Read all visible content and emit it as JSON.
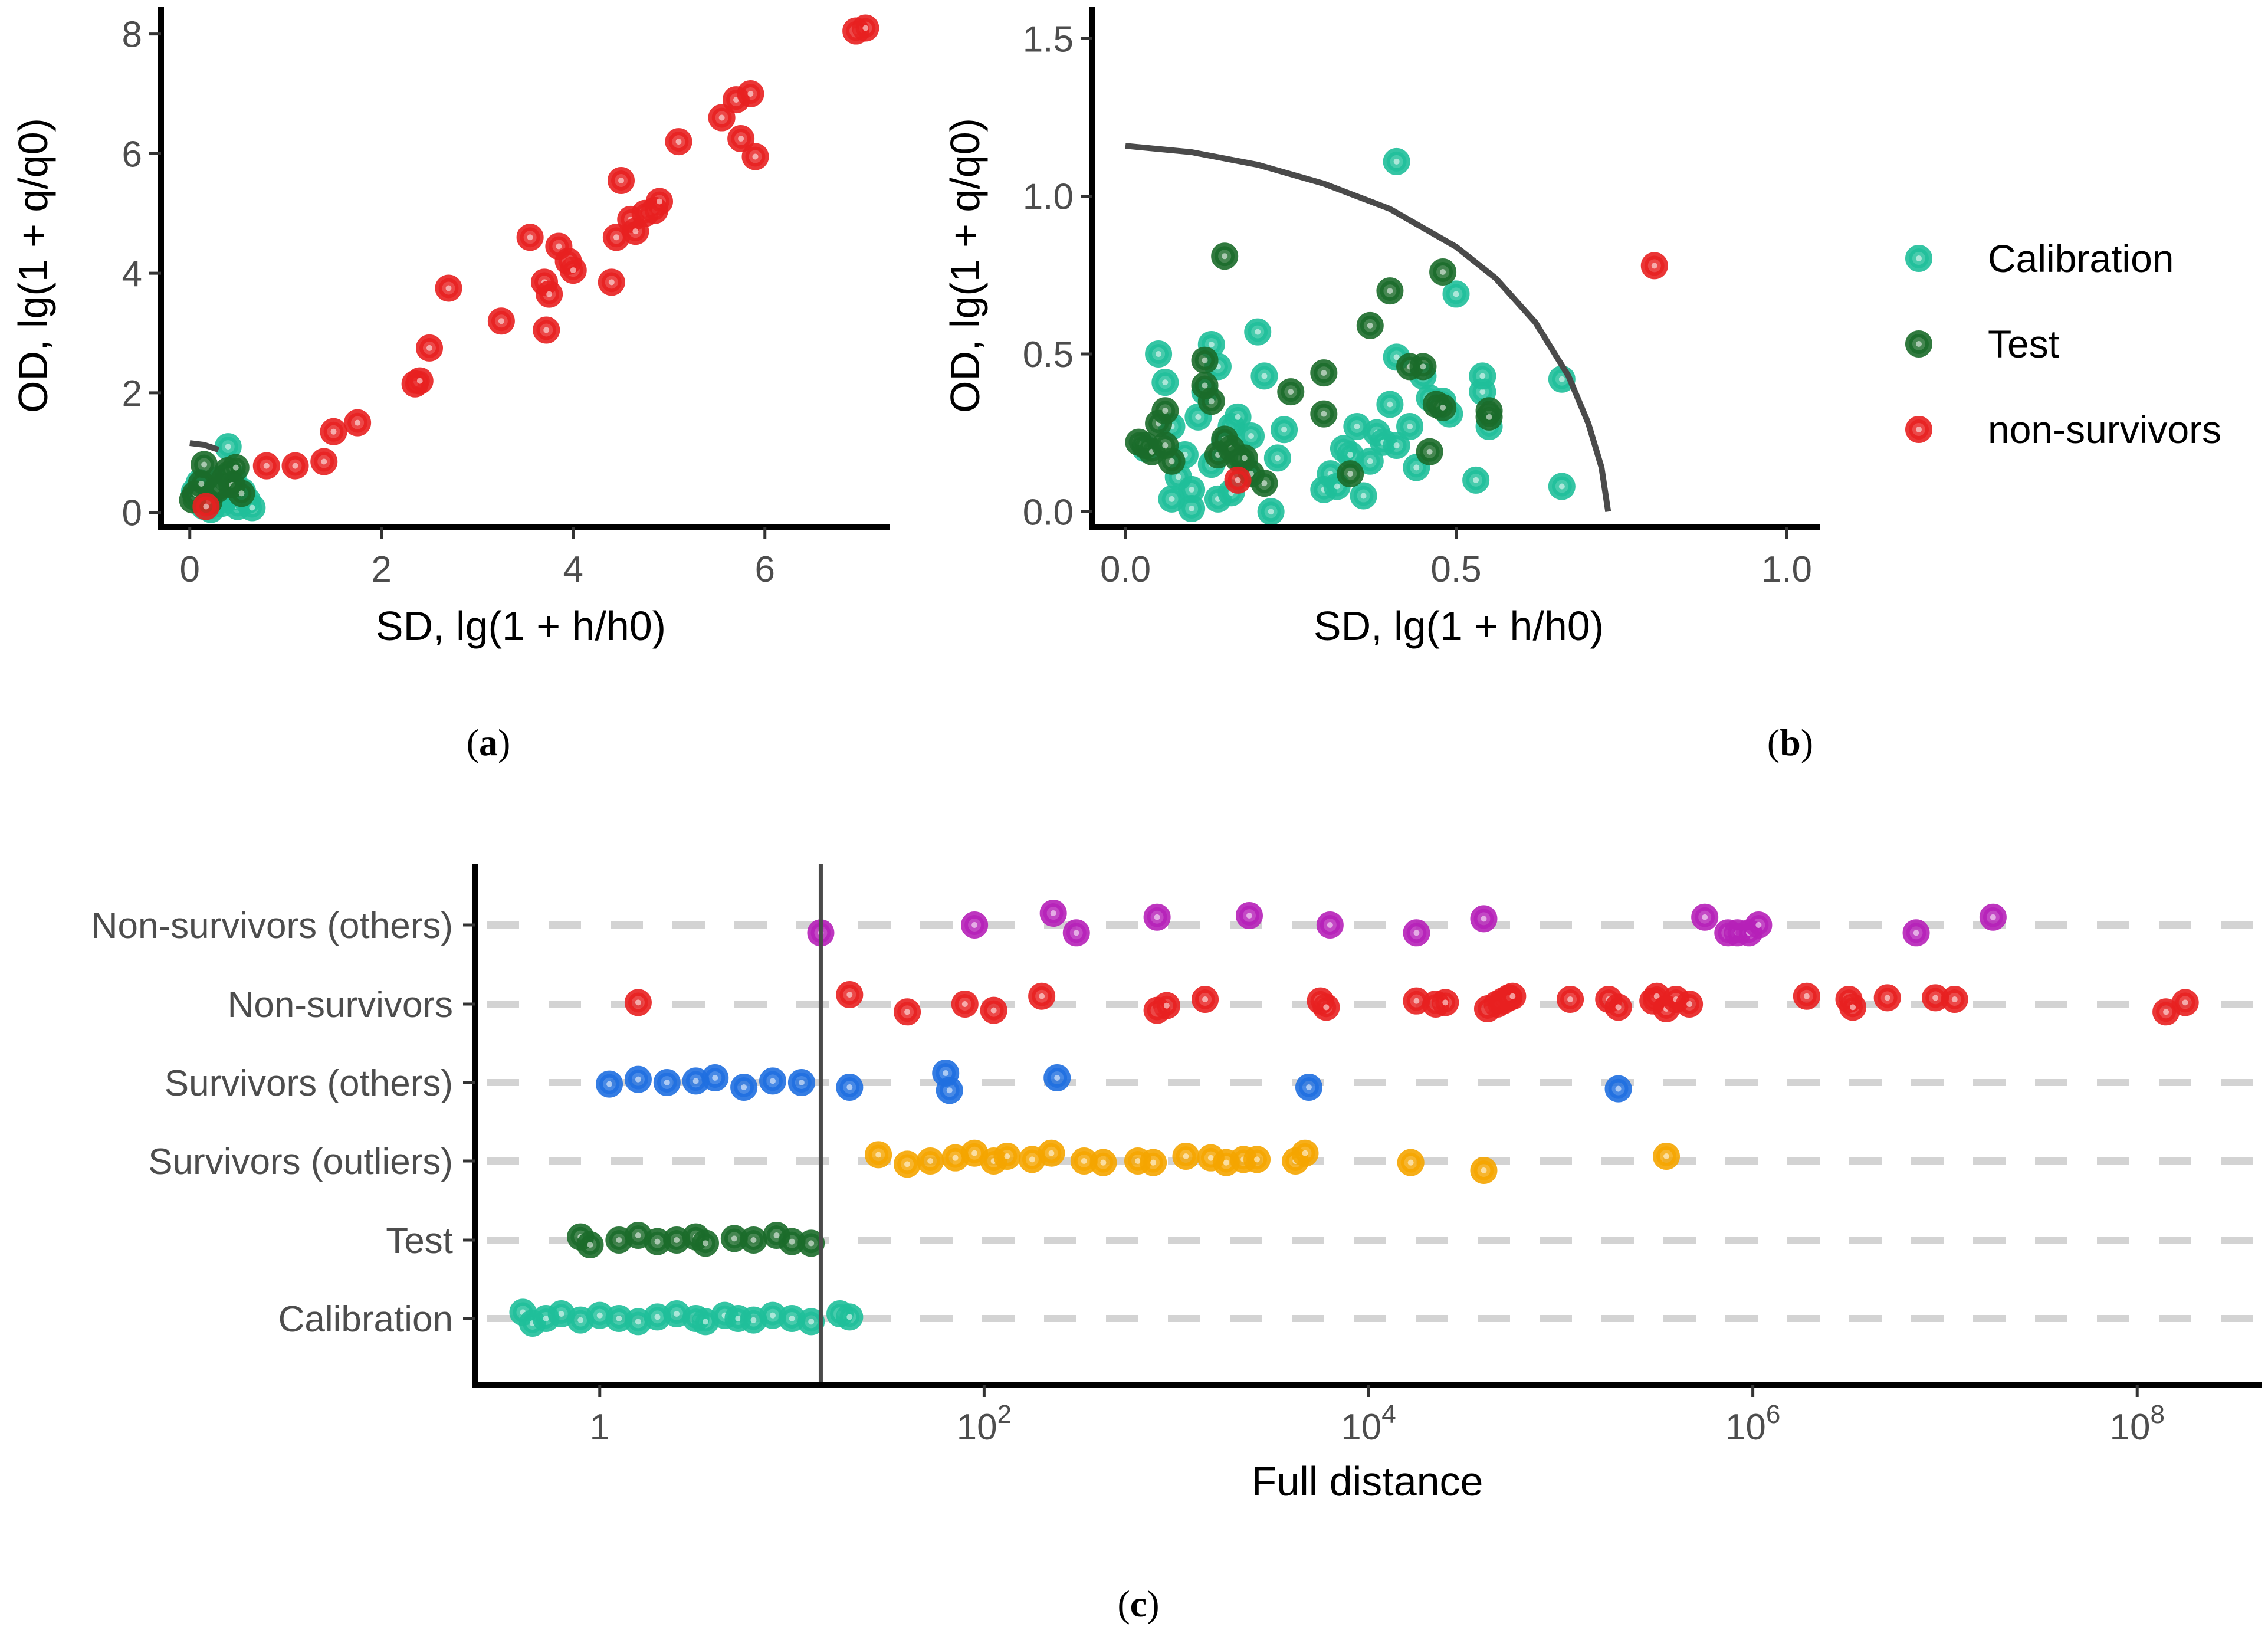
{
  "chart_data": [
    {
      "id": "a",
      "type": "scatter",
      "panel_label": "(a)",
      "panel_letter": "a",
      "xlabel": "SD, lg(1 + h/h0)",
      "ylabel": "OD, lg(1 + q/q0)",
      "xlim": [
        -0.3,
        7.3
      ],
      "ylim": [
        -0.25,
        8.45
      ],
      "x_ticks": [
        0,
        2,
        4,
        6
      ],
      "y_ticks": [
        0,
        2,
        4,
        6,
        8
      ],
      "boundary_curve": [
        [
          0.0,
          1.16
        ],
        [
          0.15,
          1.13
        ],
        [
          0.3,
          1.05
        ]
      ],
      "series": [
        {
          "name": "Calibration",
          "color": "#1fbf9a",
          "points": [
            [
              0.05,
              0.35
            ],
            [
              0.1,
              0.5
            ],
            [
              0.12,
              0.2
            ],
            [
              0.18,
              0.42
            ],
            [
              0.22,
              0.05
            ],
            [
              0.25,
              0.3
            ],
            [
              0.3,
              0.55
            ],
            [
              0.33,
              0.15
            ],
            [
              0.36,
              0.45
            ],
            [
              0.4,
              1.1
            ],
            [
              0.42,
              0.25
            ],
            [
              0.45,
              0.6
            ],
            [
              0.5,
              0.1
            ],
            [
              0.55,
              0.35
            ],
            [
              0.6,
              0.2
            ],
            [
              0.65,
              0.08
            ],
            [
              0.15,
              0.1
            ],
            [
              0.28,
              0.22
            ],
            [
              0.38,
              0.32
            ],
            [
              0.48,
              0.4
            ]
          ]
        },
        {
          "name": "Test",
          "color": "#1b6b2a",
          "points": [
            [
              0.03,
              0.21
            ],
            [
              0.06,
              0.31
            ],
            [
              0.12,
              0.48
            ],
            [
              0.15,
              0.8
            ],
            [
              0.2,
              0.18
            ],
            [
              0.28,
              0.38
            ],
            [
              0.31,
              0.44
            ],
            [
              0.37,
              0.58
            ],
            [
              0.4,
              0.7
            ],
            [
              0.44,
              0.46
            ],
            [
              0.48,
              0.75
            ],
            [
              0.54,
              0.32
            ]
          ]
        },
        {
          "name": "non-survivors",
          "color": "#e82020",
          "points": [
            [
              0.17,
              0.1
            ],
            [
              0.8,
              0.78
            ],
            [
              1.1,
              0.78
            ],
            [
              1.4,
              0.85
            ],
            [
              1.5,
              1.35
            ],
            [
              1.75,
              1.5
            ],
            [
              2.35,
              2.15
            ],
            [
              2.4,
              2.2
            ],
            [
              2.5,
              2.75
            ],
            [
              2.7,
              3.75
            ],
            [
              3.25,
              3.2
            ],
            [
              3.55,
              4.6
            ],
            [
              3.7,
              3.85
            ],
            [
              3.72,
              3.05
            ],
            [
              3.75,
              3.65
            ],
            [
              3.85,
              4.45
            ],
            [
              3.95,
              4.2
            ],
            [
              4.0,
              4.05
            ],
            [
              4.4,
              3.85
            ],
            [
              4.45,
              4.6
            ],
            [
              4.5,
              5.55
            ],
            [
              4.6,
              4.9
            ],
            [
              4.65,
              4.7
            ],
            [
              4.75,
              5.0
            ],
            [
              4.85,
              5.05
            ],
            [
              4.9,
              5.2
            ],
            [
              5.1,
              6.2
            ],
            [
              5.55,
              6.6
            ],
            [
              5.7,
              6.9
            ],
            [
              5.75,
              6.25
            ],
            [
              5.85,
              7.0
            ],
            [
              5.9,
              5.95
            ],
            [
              6.95,
              8.05
            ],
            [
              7.05,
              8.1
            ]
          ]
        }
      ]
    },
    {
      "id": "b",
      "type": "scatter",
      "panel_label": "(b)",
      "panel_letter": "b",
      "xlabel": "SD, lg(1 + h/h0)",
      "ylabel": "OD, lg(1 + q/q0)",
      "xlim": [
        -0.05,
        1.05
      ],
      "ylim": [
        -0.05,
        1.6
      ],
      "x_ticks": [
        0.0,
        0.5,
        1.0
      ],
      "y_ticks": [
        0.0,
        0.5,
        1.0,
        1.5
      ],
      "boundary_curve": [
        [
          0.0,
          1.16
        ],
        [
          0.1,
          1.14
        ],
        [
          0.2,
          1.1
        ],
        [
          0.3,
          1.04
        ],
        [
          0.4,
          0.96
        ],
        [
          0.5,
          0.84
        ],
        [
          0.56,
          0.74
        ],
        [
          0.62,
          0.6
        ],
        [
          0.67,
          0.43
        ],
        [
          0.7,
          0.28
        ],
        [
          0.72,
          0.14
        ],
        [
          0.73,
          0.0
        ]
      ],
      "series": [
        {
          "name": "Calibration",
          "color": "#1fbf9a",
          "points": [
            [
              0.03,
              0.2
            ],
            [
              0.05,
              0.5
            ],
            [
              0.06,
              0.41
            ],
            [
              0.07,
              0.04
            ],
            [
              0.07,
              0.27
            ],
            [
              0.08,
              0.11
            ],
            [
              0.09,
              0.18
            ],
            [
              0.1,
              0.01
            ],
            [
              0.1,
              0.07
            ],
            [
              0.11,
              0.3
            ],
            [
              0.12,
              0.38
            ],
            [
              0.13,
              0.53
            ],
            [
              0.13,
              0.15
            ],
            [
              0.14,
              0.46
            ],
            [
              0.14,
              0.04
            ],
            [
              0.15,
              0.22
            ],
            [
              0.16,
              0.27
            ],
            [
              0.16,
              0.06
            ],
            [
              0.17,
              0.3
            ],
            [
              0.18,
              0.14
            ],
            [
              0.19,
              0.24
            ],
            [
              0.2,
              0.57
            ],
            [
              0.21,
              0.43
            ],
            [
              0.22,
              0.0
            ],
            [
              0.23,
              0.17
            ],
            [
              0.24,
              0.26
            ],
            [
              0.3,
              0.07
            ],
            [
              0.31,
              0.12
            ],
            [
              0.32,
              0.08
            ],
            [
              0.33,
              0.2
            ],
            [
              0.34,
              0.18
            ],
            [
              0.35,
              0.27
            ],
            [
              0.36,
              0.05
            ],
            [
              0.37,
              0.16
            ],
            [
              0.38,
              0.25
            ],
            [
              0.39,
              0.22
            ],
            [
              0.4,
              0.34
            ],
            [
              0.41,
              0.21
            ],
            [
              0.41,
              0.49
            ],
            [
              0.41,
              1.11
            ],
            [
              0.43,
              0.27
            ],
            [
              0.44,
              0.14
            ],
            [
              0.45,
              0.43
            ],
            [
              0.46,
              0.36
            ],
            [
              0.48,
              0.35
            ],
            [
              0.49,
              0.31
            ],
            [
              0.5,
              0.69
            ],
            [
              0.53,
              0.1
            ],
            [
              0.54,
              0.38
            ],
            [
              0.54,
              0.43
            ],
            [
              0.55,
              0.27
            ],
            [
              0.66,
              0.42
            ],
            [
              0.66,
              0.08
            ]
          ]
        },
        {
          "name": "Test",
          "color": "#1b6b2a",
          "points": [
            [
              0.02,
              0.22
            ],
            [
              0.03,
              0.21
            ],
            [
              0.04,
              0.19
            ],
            [
              0.05,
              0.28
            ],
            [
              0.06,
              0.32
            ],
            [
              0.06,
              0.21
            ],
            [
              0.07,
              0.16
            ],
            [
              0.12,
              0.48
            ],
            [
              0.12,
              0.4
            ],
            [
              0.13,
              0.35
            ],
            [
              0.14,
              0.18
            ],
            [
              0.15,
              0.81
            ],
            [
              0.15,
              0.23
            ],
            [
              0.16,
              0.2
            ],
            [
              0.17,
              0.17
            ],
            [
              0.18,
              0.17
            ],
            [
              0.19,
              0.12
            ],
            [
              0.21,
              0.09
            ],
            [
              0.25,
              0.38
            ],
            [
              0.3,
              0.44
            ],
            [
              0.3,
              0.31
            ],
            [
              0.34,
              0.12
            ],
            [
              0.37,
              0.59
            ],
            [
              0.4,
              0.7
            ],
            [
              0.43,
              0.46
            ],
            [
              0.45,
              0.46
            ],
            [
              0.46,
              0.19
            ],
            [
              0.47,
              0.34
            ],
            [
              0.48,
              0.76
            ],
            [
              0.48,
              0.33
            ],
            [
              0.55,
              0.32
            ],
            [
              0.55,
              0.3
            ]
          ]
        },
        {
          "name": "non-survivors",
          "color": "#e82020",
          "points": [
            [
              0.17,
              0.1
            ],
            [
              0.8,
              0.78
            ]
          ]
        }
      ],
      "legend": {
        "placement": "right",
        "entries": [
          {
            "label": "Calibration",
            "color": "#1fbf9a"
          },
          {
            "label": "Test",
            "color": "#1b6b2a"
          },
          {
            "label": "non-survivors",
            "color": "#e82020"
          }
        ]
      }
    },
    {
      "id": "c",
      "type": "scatter",
      "panel_label": "(c)",
      "panel_letter": "c",
      "xlabel": "Full distance",
      "x_scale": "log10",
      "xlim_log10": [
        -0.65,
        8.65
      ],
      "x_ticks": [
        {
          "log10": 0,
          "base": "1",
          "exp": ""
        },
        {
          "log10": 2,
          "base": "10",
          "exp": "2"
        },
        {
          "log10": 4,
          "base": "10",
          "exp": "4"
        },
        {
          "log10": 6,
          "base": "10",
          "exp": "6"
        },
        {
          "log10": 8,
          "base": "10",
          "exp": "8"
        }
      ],
      "threshold_log10": 1.15,
      "categories": [
        "Non-survivors (others)",
        "Non-survivors",
        "Survivors (others)",
        "Survivors (outliers)",
        "Test",
        "Calibration"
      ],
      "series": [
        {
          "name": "Non-survivors (others)",
          "color": "#b620b8",
          "log10_x": [
            1.15,
            1.95,
            2.36,
            2.48,
            2.9,
            3.38,
            3.8,
            4.25,
            4.6,
            5.75,
            5.87,
            5.92,
            5.98,
            6.03,
            6.85,
            7.25
          ],
          "jitter": [
            -0.1,
            0.0,
            0.15,
            -0.1,
            0.1,
            0.12,
            0.0,
            -0.1,
            0.08,
            0.1,
            -0.1,
            -0.1,
            -0.1,
            0.0,
            -0.1,
            0.1
          ]
        },
        {
          "name": "Non-survivors",
          "color": "#e82020",
          "log10_x": [
            0.2,
            1.3,
            1.6,
            1.9,
            2.05,
            2.3,
            2.9,
            2.95,
            3.15,
            3.75,
            3.78,
            4.25,
            4.35,
            4.4,
            4.62,
            4.67,
            4.7,
            4.73,
            4.75,
            5.05,
            5.25,
            5.3,
            5.48,
            5.5,
            5.55,
            5.6,
            5.67,
            6.28,
            6.5,
            6.52,
            6.7,
            6.95,
            7.05,
            8.15,
            8.25
          ],
          "jitter": [
            0.02,
            0.12,
            -0.1,
            0.0,
            -0.08,
            0.1,
            -0.08,
            -0.02,
            0.06,
            0.04,
            -0.04,
            0.04,
            0.0,
            0.02,
            -0.06,
            0.0,
            0.04,
            0.08,
            0.1,
            0.06,
            0.06,
            -0.04,
            0.04,
            0.1,
            -0.06,
            0.06,
            0.0,
            0.1,
            0.06,
            -0.04,
            0.08,
            0.08,
            0.06,
            -0.1,
            0.02
          ]
        },
        {
          "name": "Survivors (others)",
          "color": "#1f6fe0",
          "log10_x": [
            0.05,
            0.2,
            0.35,
            0.5,
            0.6,
            0.75,
            0.9,
            1.05,
            1.3,
            1.8,
            1.82,
            2.38,
            3.69,
            5.3
          ],
          "jitter": [
            -0.02,
            0.04,
            0.0,
            0.02,
            0.06,
            -0.06,
            0.02,
            0.0,
            -0.06,
            0.12,
            -0.1,
            0.06,
            -0.06,
            -0.08
          ]
        },
        {
          "name": "Survivors (outliers)",
          "color": "#f5a500",
          "log10_x": [
            1.45,
            1.6,
            1.72,
            1.85,
            1.95,
            2.05,
            2.12,
            2.25,
            2.35,
            2.52,
            2.62,
            2.8,
            2.88,
            3.05,
            3.18,
            3.26,
            3.35,
            3.42,
            3.62,
            3.67,
            4.22,
            4.6,
            5.55
          ],
          "jitter": [
            0.08,
            -0.04,
            0.0,
            0.04,
            0.1,
            0.0,
            0.06,
            0.02,
            0.1,
            0.0,
            -0.02,
            0.0,
            -0.02,
            0.06,
            0.04,
            -0.02,
            0.02,
            0.02,
            0.0,
            0.1,
            -0.02,
            -0.12,
            0.06
          ]
        },
        {
          "name": "Test",
          "color": "#1b6b2a",
          "log10_x": [
            -0.1,
            -0.05,
            0.1,
            0.2,
            0.3,
            0.4,
            0.5,
            0.55,
            0.7,
            0.8,
            0.92,
            1.0,
            1.1
          ],
          "jitter": [
            0.04,
            -0.06,
            0.0,
            0.06,
            -0.02,
            0.0,
            0.04,
            -0.04,
            0.02,
            0.0,
            0.06,
            -0.02,
            -0.04
          ]
        },
        {
          "name": "Calibration",
          "color": "#1fbf9a",
          "log10_x": [
            -0.4,
            -0.35,
            -0.28,
            -0.2,
            -0.1,
            0.0,
            0.1,
            0.2,
            0.3,
            0.4,
            0.5,
            0.55,
            0.65,
            0.72,
            0.8,
            0.9,
            1.0,
            1.1,
            1.25,
            1.3
          ],
          "jitter": [
            0.08,
            -0.06,
            0.0,
            0.06,
            -0.02,
            0.04,
            0.0,
            -0.04,
            0.02,
            0.06,
            0.0,
            -0.04,
            0.04,
            0.0,
            -0.02,
            0.04,
            0.0,
            -0.04,
            0.06,
            0.02
          ]
        }
      ]
    }
  ]
}
